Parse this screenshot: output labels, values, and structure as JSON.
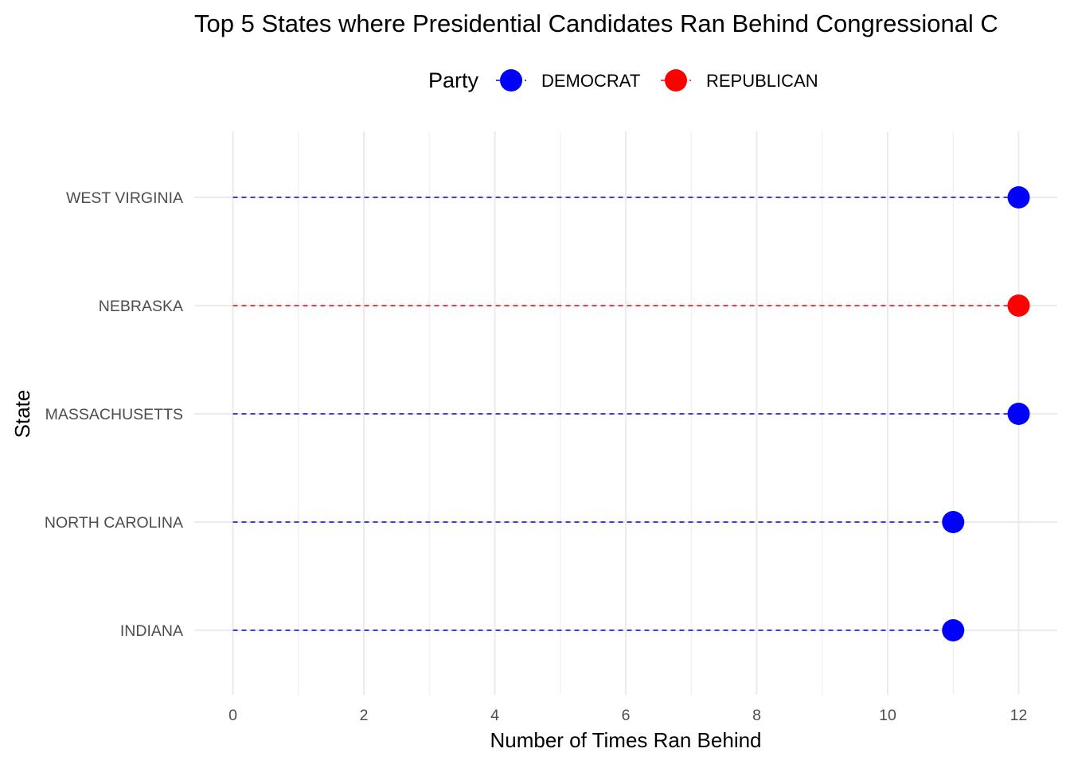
{
  "chart_data": {
    "type": "lollipop",
    "title": "Top 5 States where Presidential Candidates Ran Behind Congressional C",
    "xlabel": "Number of Times Ran Behind",
    "ylabel": "State",
    "xlim": [
      0,
      12
    ],
    "x_ticks": [
      0,
      2,
      4,
      6,
      8,
      10,
      12
    ],
    "grid": true,
    "legend": {
      "title": "Party",
      "position": "top",
      "entries": [
        {
          "name": "DEMOCRAT",
          "color": "#0000ff"
        },
        {
          "name": "REPUBLICAN",
          "color": "#ff0000"
        }
      ]
    },
    "categories": [
      "INDIANA",
      "NORTH CAROLINA",
      "MASSACHUSETTS",
      "NEBRASKA",
      "WEST VIRGINIA"
    ],
    "points": [
      {
        "state": "INDIANA",
        "value": 11,
        "party": "DEMOCRAT"
      },
      {
        "state": "NORTH CAROLINA",
        "value": 11,
        "party": "DEMOCRAT"
      },
      {
        "state": "MASSACHUSETTS",
        "value": 12,
        "party": "DEMOCRAT"
      },
      {
        "state": "NEBRASKA",
        "value": 12,
        "party": "REPUBLICAN"
      },
      {
        "state": "WEST VIRGINIA",
        "value": 12,
        "party": "DEMOCRAT"
      }
    ]
  }
}
